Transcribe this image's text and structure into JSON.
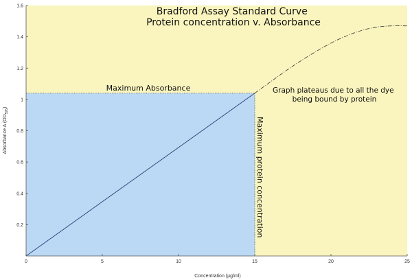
{
  "chart_data": {
    "type": "line",
    "title": [
      "Bradford Assay Standard Curve",
      "Protein concentration v. Absorbance"
    ],
    "xlabel": "Concentration (µg/ml)",
    "ylabel": "Absorbance A (OD",
    "ylabel_sub": "595",
    "ylabel_end": ")",
    "xlim": [
      0,
      25
    ],
    "ylim": [
      0,
      1.6
    ],
    "x_ticks": [
      0,
      5,
      10,
      15,
      20,
      25
    ],
    "x_tick_labels": [
      "0",
      "5",
      "10",
      "15",
      "20",
      "25"
    ],
    "y_ticks": [
      0.2,
      0.4,
      0.6,
      0.8,
      1.0,
      1.2,
      1.4,
      1.6
    ],
    "y_tick_labels": [
      "0.2",
      "0.4",
      "0.6",
      "0.8",
      "1",
      "1.2",
      "1.4",
      "1.6"
    ],
    "grid": false,
    "series": [
      {
        "style": "solid",
        "color": "#2c3e73",
        "x": [
          0,
          15
        ],
        "y": [
          0,
          1.04
        ]
      },
      {
        "style": "dashed",
        "color": "#444444",
        "x": [
          15,
          16,
          17,
          18,
          19,
          20,
          21,
          22,
          23,
          24,
          25
        ],
        "y": [
          1.04,
          1.11,
          1.18,
          1.245,
          1.305,
          1.36,
          1.405,
          1.44,
          1.462,
          1.47,
          1.47
        ]
      }
    ],
    "regions": [
      {
        "x": [
          0,
          15
        ],
        "y": [
          0,
          1.04
        ],
        "color": "#bbd9f5"
      },
      {
        "background": "#faf5be"
      }
    ],
    "reference_lines": {
      "max_absorbance_y": 1.04,
      "max_concentration_x": 15
    },
    "annotations": {
      "max_absorbance": "Maximum Absorbance",
      "max_concentration": "Maximum protein concentration",
      "plateau_line1": "Graph plateaus due to all the dye",
      "plateau_line2": "being bound by protein"
    }
  }
}
